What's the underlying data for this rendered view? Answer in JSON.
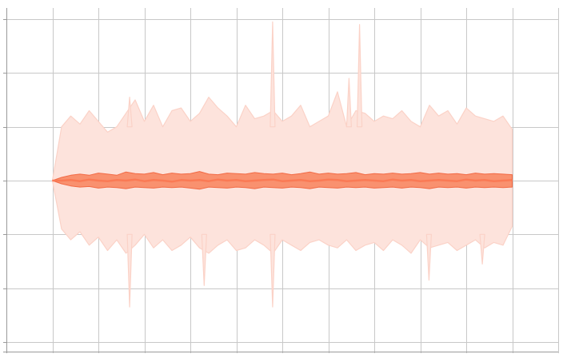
{
  "chart_data": {
    "type": "area",
    "title": "",
    "xlabel": "",
    "ylabel": "",
    "grid": true,
    "legend": "none",
    "xlim": [
      -10,
      110
    ],
    "ylim": [
      -3,
      3
    ],
    "x_gridlines": [
      -10,
      0,
      10,
      20,
      30,
      40,
      50,
      60,
      70,
      80,
      90,
      100,
      110
    ],
    "y_gridlines": [
      -3,
      -2,
      -1,
      0,
      1,
      2,
      3
    ],
    "tick_labels_visible": false,
    "colors": {
      "band_outer": "#fde3dc",
      "band_outer_edge": "#fbd2c7",
      "band_inner": "#f9916f",
      "band_inner_edge": "#f26a45",
      "center_line": "#fa7a55",
      "grid": "#c8c8c8",
      "axis": "#9a9a9a"
    },
    "x": [
      0,
      2,
      4,
      6,
      8,
      10,
      12,
      14,
      16,
      18,
      20,
      22,
      24,
      26,
      28,
      30,
      32,
      34,
      36,
      38,
      40,
      42,
      44,
      46,
      48,
      50,
      52,
      54,
      56,
      58,
      60,
      62,
      64,
      66,
      68,
      70,
      72,
      74,
      76,
      78,
      80,
      82,
      84,
      86,
      88,
      90,
      92,
      94,
      96,
      98,
      100
    ],
    "series": [
      {
        "role": "outer_band",
        "upper": [
          0.0,
          1.0,
          1.2,
          1.05,
          1.3,
          1.1,
          0.9,
          1.0,
          1.25,
          1.5,
          1.1,
          1.4,
          1.0,
          1.3,
          1.35,
          1.1,
          1.25,
          1.55,
          1.35,
          1.2,
          1.0,
          1.4,
          1.15,
          1.2,
          1.3,
          1.1,
          1.2,
          1.4,
          1.0,
          1.1,
          1.2,
          1.65,
          1.0,
          1.3,
          1.25,
          1.1,
          1.2,
          1.15,
          1.3,
          1.1,
          1.0,
          1.4,
          1.2,
          1.3,
          1.05,
          1.35,
          1.2,
          1.15,
          1.1,
          1.2,
          0.95
        ],
        "lower": [
          0.0,
          -0.9,
          -1.1,
          -0.95,
          -1.2,
          -1.05,
          -1.3,
          -1.1,
          -1.35,
          -1.2,
          -1.0,
          -1.25,
          -1.1,
          -1.3,
          -1.2,
          -1.05,
          -1.25,
          -1.35,
          -1.2,
          -1.1,
          -1.3,
          -1.25,
          -1.1,
          -1.2,
          -1.35,
          -1.1,
          -1.2,
          -1.3,
          -1.15,
          -1.1,
          -1.2,
          -1.25,
          -1.1,
          -1.3,
          -1.2,
          -1.15,
          -1.3,
          -1.1,
          -1.2,
          -1.35,
          -1.1,
          -1.25,
          -1.2,
          -1.15,
          -1.3,
          -1.2,
          -1.1,
          -1.25,
          -1.15,
          -1.2,
          -0.85
        ]
      },
      {
        "role": "inner_band",
        "upper": [
          0.0,
          0.06,
          0.1,
          0.12,
          0.1,
          0.14,
          0.12,
          0.1,
          0.16,
          0.13,
          0.12,
          0.15,
          0.11,
          0.14,
          0.12,
          0.13,
          0.17,
          0.12,
          0.11,
          0.14,
          0.13,
          0.12,
          0.15,
          0.13,
          0.12,
          0.14,
          0.11,
          0.13,
          0.16,
          0.12,
          0.14,
          0.12,
          0.13,
          0.15,
          0.11,
          0.13,
          0.12,
          0.14,
          0.12,
          0.13,
          0.15,
          0.12,
          0.14,
          0.12,
          0.13,
          0.11,
          0.14,
          0.12,
          0.13,
          0.12,
          0.11
        ],
        "lower": [
          0.0,
          -0.06,
          -0.1,
          -0.12,
          -0.11,
          -0.14,
          -0.12,
          -0.13,
          -0.15,
          -0.12,
          -0.13,
          -0.14,
          -0.12,
          -0.13,
          -0.12,
          -0.14,
          -0.16,
          -0.12,
          -0.13,
          -0.14,
          -0.12,
          -0.13,
          -0.15,
          -0.12,
          -0.13,
          -0.14,
          -0.12,
          -0.13,
          -0.15,
          -0.12,
          -0.13,
          -0.14,
          -0.12,
          -0.13,
          -0.12,
          -0.14,
          -0.13,
          -0.12,
          -0.14,
          -0.12,
          -0.13,
          -0.15,
          -0.12,
          -0.13,
          -0.12,
          -0.14,
          -0.12,
          -0.13,
          -0.12,
          -0.13,
          -0.12
        ]
      },
      {
        "role": "center",
        "values": [
          0.0,
          0.0,
          0.01,
          -0.01,
          0.02,
          0.0,
          -0.01,
          0.01,
          0.0,
          0.02,
          -0.01,
          0.01,
          0.0,
          -0.02,
          0.01,
          0.0,
          0.01,
          -0.01,
          0.02,
          0.0,
          0.01,
          -0.01,
          0.0,
          0.01,
          0.02,
          -0.01,
          0.0,
          0.01,
          -0.01,
          0.0,
          0.02,
          0.01,
          -0.01,
          0.0,
          0.01,
          0.0,
          -0.01,
          0.02,
          0.0,
          0.01,
          -0.01,
          0.0,
          0.01,
          0.0,
          -0.01,
          0.02,
          0.0,
          0.01,
          -0.01,
          0.0,
          0.01
        ]
      }
    ],
    "spikes": [
      {
        "x": 16.8,
        "y": 1.55
      },
      {
        "x": 16.8,
        "y": -2.35
      },
      {
        "x": 33.0,
        "y": -1.95
      },
      {
        "x": 47.9,
        "y": 2.95
      },
      {
        "x": 47.9,
        "y": -2.35
      },
      {
        "x": 64.5,
        "y": 1.9
      },
      {
        "x": 66.8,
        "y": 2.9
      },
      {
        "x": 81.9,
        "y": -1.85
      },
      {
        "x": 93.5,
        "y": -1.55
      }
    ]
  }
}
